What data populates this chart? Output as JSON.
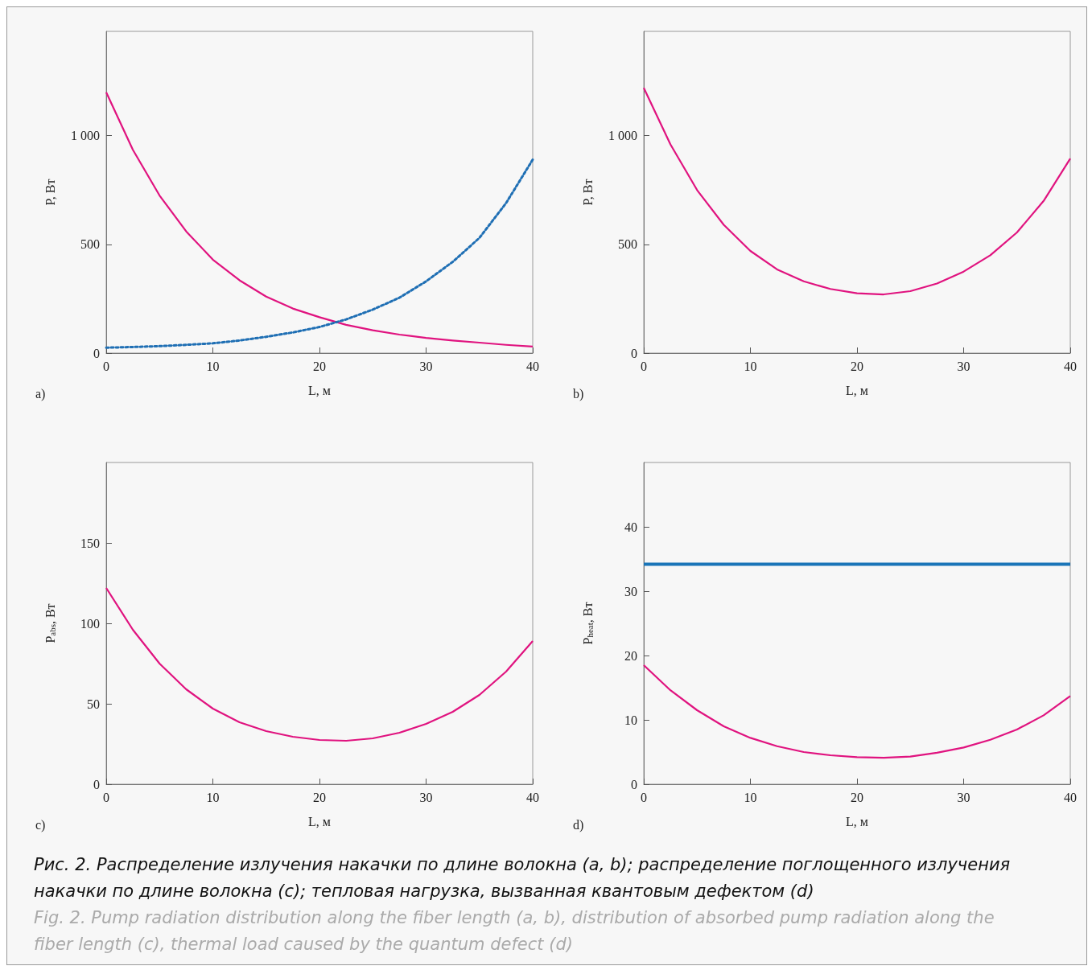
{
  "chart_data": [
    {
      "type": "line",
      "xlabel": "L, м",
      "ylabel": "P, Вт",
      "annotations": [
        "a)"
      ],
      "xlim": [
        0,
        40
      ],
      "xticks": [
        0,
        10,
        20,
        30,
        40
      ],
      "ylim": [
        0,
        1480
      ],
      "yticks": [
        0,
        500,
        {
          "value": 1000,
          "label": "1 000"
        }
      ],
      "grid": false,
      "marker": "none",
      "x": [
        0,
        2.5,
        5,
        7.5,
        10,
        12.5,
        15,
        17.5,
        20,
        22.5,
        25,
        27.5,
        30,
        32.5,
        35,
        37.5,
        40
      ],
      "series": [
        {
          "color": "#e0137f",
          "line_style": "solid",
          "values": [
            1200,
            935,
            725,
            560,
            430,
            335,
            260,
            205,
            165,
            130,
            105,
            85,
            70,
            58,
            48,
            38,
            30
          ]
        },
        {
          "color": "#1f6fb4",
          "line_style": "dotted",
          "values": [
            25,
            28,
            32,
            38,
            45,
            58,
            75,
            95,
            120,
            155,
            200,
            255,
            330,
            420,
            530,
            690,
            890
          ]
        }
      ]
    },
    {
      "type": "line",
      "xlabel": "L, м",
      "ylabel": "P, Вт",
      "annotations": [
        "b)"
      ],
      "xlim": [
        0,
        40
      ],
      "xticks": [
        0,
        10,
        20,
        30,
        40
      ],
      "ylim": [
        0,
        1480
      ],
      "yticks": [
        0,
        500,
        {
          "value": 1000,
          "label": "1 000"
        }
      ],
      "grid": false,
      "marker": "none",
      "x": [
        0,
        2.5,
        5,
        7.5,
        10,
        12.5,
        15,
        17.5,
        20,
        22.5,
        25,
        27.5,
        30,
        32.5,
        35,
        37.5,
        40
      ],
      "series": [
        {
          "color": "#e0137f",
          "line_style": "solid",
          "values": [
            1220,
            960,
            750,
            590,
            470,
            385,
            330,
            295,
            275,
            270,
            285,
            320,
            375,
            450,
            555,
            700,
            895
          ]
        }
      ]
    },
    {
      "type": "line",
      "xlabel": "L, м",
      "ylabel": "P$_{abs}$, Вт",
      "annotations": [
        "c)"
      ],
      "xlim": [
        0,
        40
      ],
      "xticks": [
        0,
        10,
        20,
        30,
        40
      ],
      "ylim": [
        0,
        200
      ],
      "yticks": [
        0,
        50,
        100,
        150
      ],
      "grid": false,
      "marker": "none",
      "x": [
        0,
        2.5,
        5,
        7.5,
        10,
        12.5,
        15,
        17.5,
        20,
        22.5,
        25,
        27.5,
        30,
        32.5,
        35,
        37.5,
        40
      ],
      "series": [
        {
          "color": "#e0137f",
          "line_style": "solid",
          "values": [
            122,
            96,
            75,
            59,
            47,
            38.5,
            33,
            29.5,
            27.5,
            27,
            28.5,
            32,
            37.5,
            45,
            55.5,
            70,
            89
          ]
        }
      ]
    },
    {
      "type": "line",
      "xlabel": "L, м",
      "ylabel": "P$_{heat}$, Вт",
      "annotations": [
        "d)"
      ],
      "xlim": [
        0,
        40
      ],
      "xticks": [
        0,
        10,
        20,
        30,
        40
      ],
      "ylim": [
        0,
        50
      ],
      "yticks": [
        0,
        10,
        20,
        30,
        40
      ],
      "grid": false,
      "marker": "none",
      "x": [
        0,
        2.5,
        5,
        7.5,
        10,
        12.5,
        15,
        17.5,
        20,
        22.5,
        25,
        27.5,
        30,
        32.5,
        35,
        37.5,
        40
      ],
      "series": [
        {
          "color": "#e0137f",
          "line_style": "solid",
          "values": [
            18.5,
            14.6,
            11.5,
            9.0,
            7.2,
            5.9,
            5.0,
            4.5,
            4.2,
            4.1,
            4.3,
            4.9,
            5.7,
            6.9,
            8.5,
            10.7,
            13.7
          ]
        },
        {
          "color": "#1a75b8",
          "line_style": "solid",
          "values": [
            34.2,
            34.2,
            34.2,
            34.2,
            34.2,
            34.2,
            34.2,
            34.2,
            34.2,
            34.2,
            34.2,
            34.2,
            34.2,
            34.2,
            34.2,
            34.2,
            34.2
          ]
        }
      ]
    },
    {
      "type": "other",
      "annotations": [
        "Рис. 2. Распределение излучения накачки по длине волокна (a, b); распределение поглощенного излучения накачки по длине волокна (c); тепловая нагрузка, вызванная квантовым дефектом (d)",
        "Fig. 2. Pump radiation distribution along the fiber length (a, b), distribution of absorbed pump radiation along the fiber length (c), thermal load caused by the quantum defect (d)"
      ]
    }
  ]
}
